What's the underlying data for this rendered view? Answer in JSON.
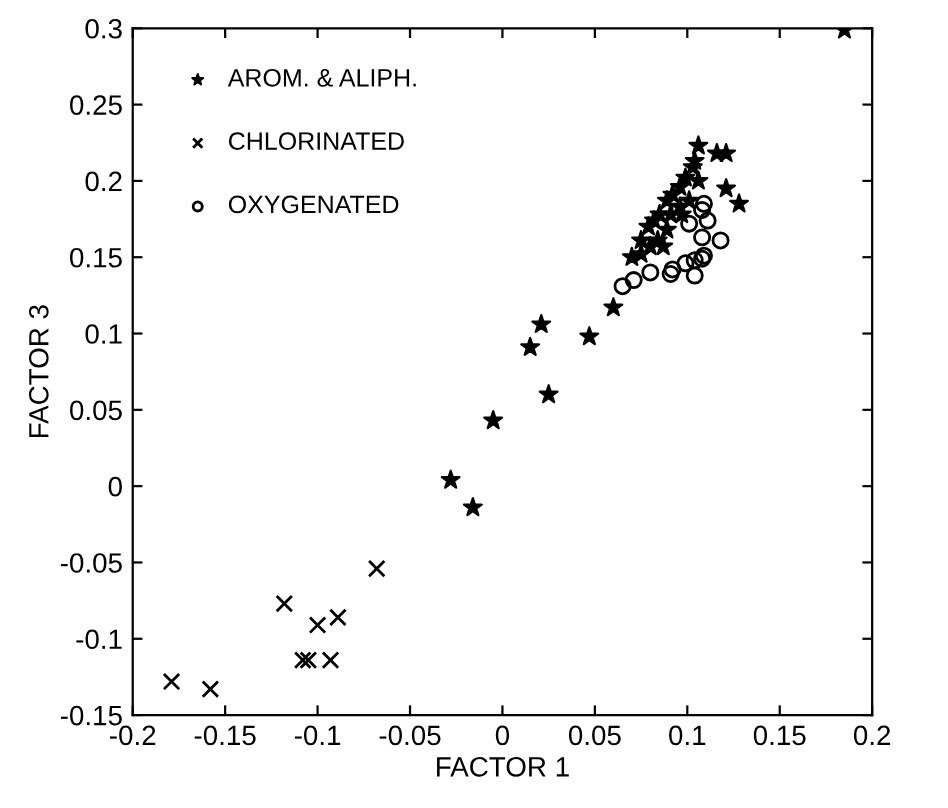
{
  "chart_data": {
    "type": "scatter",
    "xlabel": "FACTOR 1",
    "ylabel": "FACTOR 3",
    "xlim": [
      -0.2,
      0.2
    ],
    "xticks": [
      -0.2,
      -0.15,
      -0.1,
      -0.05,
      0,
      0.05,
      0.1,
      0.15,
      0.2
    ],
    "ylim": [
      -0.15,
      0.3
    ],
    "yticks": [
      -0.15,
      -0.1,
      -0.05,
      0,
      0.05,
      0.1,
      0.15,
      0.2,
      0.25,
      0.3
    ],
    "grid": false,
    "legend": "top left",
    "series": [
      {
        "name": "AROM. & ALIPH.",
        "color": "#000000",
        "marker": "star",
        "x": [
          0.185,
          0.106,
          0.116,
          0.121,
          0.121,
          0.128,
          0.06,
          0.047,
          0.015,
          0.021,
          0.025,
          -0.005,
          -0.028,
          -0.016,
          0.07,
          0.075,
          0.079,
          0.082,
          0.085,
          0.089,
          0.092,
          0.096,
          0.099,
          0.103,
          0.104,
          0.084,
          0.089,
          0.097,
          0.087,
          0.106,
          0.101,
          0.096,
          0.091,
          0.08,
          0.075
        ],
        "values": [
          0.299,
          0.223,
          0.218,
          0.218,
          0.195,
          0.185,
          0.117,
          0.098,
          0.091,
          0.106,
          0.06,
          0.043,
          0.004,
          -0.014,
          0.15,
          0.161,
          0.17,
          0.174,
          0.178,
          0.187,
          0.191,
          0.196,
          0.202,
          0.209,
          0.213,
          0.161,
          0.168,
          0.178,
          0.157,
          0.2,
          0.187,
          0.183,
          0.178,
          0.157,
          0.152
        ]
      },
      {
        "name": "CHLORINATED",
        "color": "#000000",
        "marker": "cross",
        "x": [
          -0.179,
          -0.158,
          -0.118,
          -0.1,
          -0.089,
          -0.108,
          -0.105,
          -0.093,
          -0.068
        ],
        "values": [
          -0.128,
          -0.133,
          -0.077,
          -0.091,
          -0.086,
          -0.114,
          -0.114,
          -0.114,
          -0.054
        ]
      },
      {
        "name": "OXYGENATED",
        "color": "#000000",
        "marker": "circle",
        "x": [
          0.065,
          0.071,
          0.08,
          0.091,
          0.092,
          0.099,
          0.104,
          0.104,
          0.108,
          0.109,
          0.108,
          0.118,
          0.111,
          0.108,
          0.109,
          0.101
        ],
        "values": [
          0.131,
          0.135,
          0.14,
          0.139,
          0.142,
          0.146,
          0.138,
          0.148,
          0.149,
          0.151,
          0.163,
          0.161,
          0.174,
          0.181,
          0.185,
          0.172
        ]
      }
    ]
  }
}
